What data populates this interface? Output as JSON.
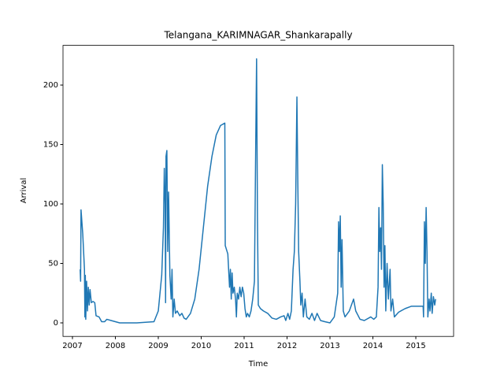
{
  "chart_data": {
    "type": "line",
    "title": "Telangana_KARIMNAGAR_Shankarapally",
    "x_label": "Time",
    "y_label": "Arrival",
    "color": "#1f77b4",
    "x": [
      2007.18,
      2007.19,
      2007.2,
      2007.22,
      2007.24,
      2007.26,
      2007.28,
      2007.29,
      2007.3,
      2007.31,
      2007.33,
      2007.35,
      2007.37,
      2007.39,
      2007.41,
      2007.44,
      2007.48,
      2007.52,
      2007.55,
      2007.62,
      2007.68,
      2007.75,
      2007.8,
      2007.9,
      2008.1,
      2008.5,
      2008.9,
      2009.0,
      2009.08,
      2009.12,
      2009.14,
      2009.16,
      2009.17,
      2009.18,
      2009.2,
      2009.22,
      2009.24,
      2009.27,
      2009.3,
      2009.32,
      2009.34,
      2009.37,
      2009.4,
      2009.44,
      2009.5,
      2009.55,
      2009.6,
      2009.65,
      2009.75,
      2009.85,
      2009.95,
      2010.05,
      2010.15,
      2010.25,
      2010.35,
      2010.45,
      2010.55,
      2010.56,
      2010.62,
      2010.66,
      2010.68,
      2010.7,
      2010.72,
      2010.74,
      2010.77,
      2010.8,
      2010.82,
      2010.84,
      2010.87,
      2010.9,
      2010.93,
      2010.96,
      2010.99,
      2011.02,
      2011.05,
      2011.08,
      2011.12,
      2011.16,
      2011.2,
      2011.24,
      2011.27,
      2011.29,
      2011.31,
      2011.33,
      2011.38,
      2011.45,
      2011.55,
      2011.65,
      2011.75,
      2011.85,
      2011.93,
      2011.97,
      2012.02,
      2012.06,
      2012.1,
      2012.14,
      2012.17,
      2012.2,
      2012.23,
      2012.25,
      2012.27,
      2012.3,
      2012.32,
      2012.35,
      2012.38,
      2012.42,
      2012.46,
      2012.52,
      2012.58,
      2012.64,
      2012.7,
      2012.78,
      2012.88,
      2013.0,
      2013.1,
      2013.18,
      2013.2,
      2013.22,
      2013.24,
      2013.26,
      2013.28,
      2013.31,
      2013.35,
      2013.45,
      2013.55,
      2013.6,
      2013.7,
      2013.8,
      2013.95,
      2014.02,
      2014.08,
      2014.12,
      2014.14,
      2014.16,
      2014.18,
      2014.2,
      2014.22,
      2014.24,
      2014.26,
      2014.28,
      2014.3,
      2014.33,
      2014.36,
      2014.4,
      2014.42,
      2014.46,
      2014.5,
      2014.6,
      2014.75,
      2014.9,
      2015.1,
      2015.17,
      2015.18,
      2015.2,
      2015.22,
      2015.24,
      2015.26,
      2015.28,
      2015.31,
      2015.33,
      2015.36,
      2015.38,
      2015.41,
      2015.44,
      2015.46
    ],
    "values": [
      45,
      35,
      95,
      85,
      75,
      60,
      45,
      5,
      40,
      3,
      35,
      10,
      30,
      15,
      28,
      17,
      18,
      17,
      6,
      5,
      1,
      1,
      3,
      2,
      0,
      0,
      1,
      10,
      40,
      80,
      130,
      100,
      17,
      140,
      145,
      60,
      110,
      40,
      20,
      45,
      5,
      20,
      8,
      10,
      6,
      8,
      4,
      3,
      8,
      20,
      45,
      80,
      115,
      140,
      158,
      166,
      168,
      65,
      58,
      30,
      45,
      20,
      42,
      25,
      30,
      20,
      5,
      25,
      20,
      30,
      22,
      30,
      25,
      12,
      5,
      8,
      5,
      10,
      20,
      35,
      150,
      222,
      90,
      15,
      12,
      10,
      8,
      4,
      3,
      5,
      6,
      2,
      8,
      3,
      10,
      45,
      60,
      100,
      190,
      120,
      60,
      35,
      15,
      25,
      5,
      20,
      5,
      3,
      8,
      2,
      8,
      2,
      1,
      0,
      5,
      25,
      85,
      60,
      90,
      30,
      70,
      10,
      5,
      10,
      20,
      10,
      3,
      2,
      5,
      3,
      5,
      30,
      97,
      60,
      80,
      45,
      133,
      100,
      30,
      65,
      10,
      50,
      20,
      45,
      10,
      20,
      5,
      9,
      12,
      14,
      14,
      14,
      5,
      85,
      50,
      97,
      60,
      5,
      20,
      10,
      25,
      8,
      22,
      15,
      20
    ],
    "xlim": [
      2006.78,
      2015.88
    ],
    "ylim": [
      -11.4,
      233.4
    ],
    "xticks": [
      2007,
      2008,
      2009,
      2010,
      2011,
      2012,
      2013,
      2014,
      2015
    ],
    "yticks": [
      0,
      50,
      100,
      150,
      200
    ]
  }
}
